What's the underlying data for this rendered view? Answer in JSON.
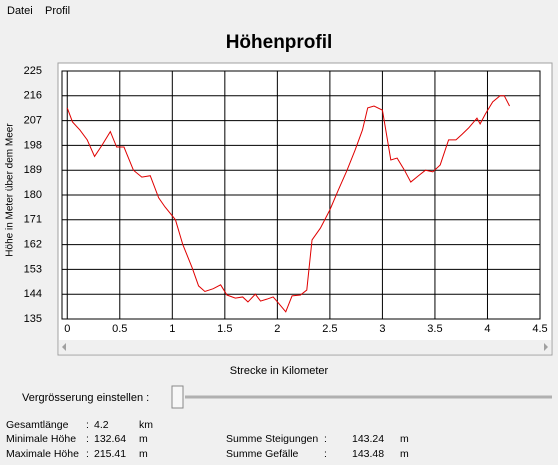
{
  "menu": [
    "Datei",
    "Profil"
  ],
  "chart_data": {
    "type": "line",
    "title": "Höhenprofil",
    "x_label": "Strecke in Kilometer",
    "y_label": "Höhe in Meter über dem Meer",
    "xlim": [
      -0.05,
      4.5
    ],
    "xticks": [
      0,
      0.5,
      1,
      1.5,
      2,
      2.5,
      3,
      3.5,
      4,
      4.5
    ],
    "ylim": [
      135,
      225
    ],
    "yticks": [
      135,
      144,
      153,
      162,
      171,
      180,
      189,
      198,
      207,
      216,
      225
    ],
    "grid": true,
    "x": [
      0,
      0.05,
      0.12,
      0.19,
      0.26,
      0.33,
      0.41,
      0.47,
      0.54,
      0.63,
      0.71,
      0.79,
      0.87,
      0.93,
      1.03,
      1.1,
      1.19,
      1.25,
      1.31,
      1.39,
      1.46,
      1.52,
      1.6,
      1.67,
      1.72,
      1.79,
      1.84,
      1.9,
      1.96,
      2.01,
      2.08,
      2.14,
      2.22,
      2.28,
      2.33,
      2.41,
      2.5,
      2.58,
      2.66,
      2.74,
      2.81,
      2.86,
      2.92,
      3.0,
      3.08,
      3.14,
      3.21,
      3.27,
      3.34,
      3.41,
      3.48,
      3.55,
      3.63,
      3.7,
      3.76,
      3.82,
      3.9,
      3.93,
      3.98,
      4.05,
      4.12,
      4.16,
      4.21
    ],
    "series": [
      {
        "color": "#e00000",
        "values": [
          211.6,
          206.5,
          203.6,
          200,
          194,
          198,
          203,
          197.4,
          197.4,
          189,
          186.5,
          187,
          179,
          175.7,
          171,
          162,
          153.5,
          147,
          145,
          146,
          147.4,
          143.7,
          142.6,
          143,
          141.2,
          144,
          141.5,
          142.2,
          143,
          140.8,
          137.6,
          143.4,
          143.7,
          145.5,
          163.7,
          168,
          174.6,
          181.8,
          188.7,
          196.3,
          203.6,
          211.6,
          212.3,
          210.8,
          192.7,
          193.4,
          189,
          184.7,
          186.9,
          189,
          188.4,
          190.9,
          200,
          200,
          202.1,
          204.3,
          207.9,
          205.8,
          209.4,
          213.8,
          216,
          216,
          212.3
        ]
      }
    ]
  },
  "zoom_label": "Vergrösserung einstellen :",
  "stats": [
    {
      "label": "Gesamtlänge",
      "sep": ":",
      "value": "4.2",
      "unit": "km"
    },
    {
      "label": "Minimale Höhe",
      "sep": ":",
      "value": "132.64",
      "unit": "m"
    },
    {
      "label": "Maximale Höhe",
      "sep": ":",
      "value": "215.41",
      "unit": "m"
    },
    {
      "label": "Summe Steigungen",
      "sep": ":",
      "value": "143.24",
      "unit": "m"
    },
    {
      "label": "Summe Gefälle",
      "sep": ":",
      "value": "143.48",
      "unit": "m"
    }
  ]
}
